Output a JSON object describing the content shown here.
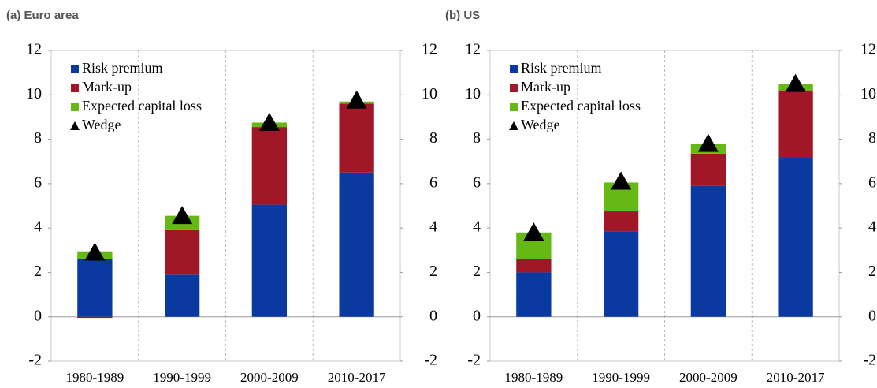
{
  "chart_data": [
    {
      "type": "bar",
      "stacked": true,
      "title": "(a) Euro area",
      "categories": [
        "1980-1989",
        "1990-1999",
        "2000-2009",
        "2010-2017"
      ],
      "series": [
        {
          "name": "Risk premium",
          "color": "#0a3aa0",
          "values": [
            2.6,
            1.9,
            5.05,
            6.5
          ]
        },
        {
          "name": "Mark-up",
          "color": "#a01828",
          "values": [
            -0.05,
            2.0,
            3.5,
            3.1
          ]
        },
        {
          "name": "Expected capital loss",
          "color": "#66b814",
          "values": [
            0.35,
            0.65,
            0.2,
            0.1
          ]
        },
        {
          "name": "Wedge",
          "color": "#000000",
          "marker": "triangle",
          "values": [
            2.85,
            4.5,
            8.7,
            9.7
          ]
        }
      ],
      "ylim": [
        -2,
        12
      ],
      "yticks": [
        -2,
        0,
        2,
        4,
        6,
        8,
        10,
        12
      ],
      "y2lim": [
        -2,
        12
      ],
      "y2ticks": [
        -2,
        0,
        2,
        4,
        6,
        8,
        10,
        12
      ],
      "legend": "upper left"
    },
    {
      "type": "bar",
      "stacked": true,
      "title": "(b) US",
      "categories": [
        "1980-1989",
        "1990-1999",
        "2000-2009",
        "2010-2017"
      ],
      "series": [
        {
          "name": "Risk premium",
          "color": "#0a3aa0",
          "values": [
            2.0,
            3.85,
            5.9,
            7.2
          ]
        },
        {
          "name": "Mark-up",
          "color": "#a01828",
          "values": [
            0.6,
            0.9,
            1.45,
            3.0
          ]
        },
        {
          "name": "Expected capital loss",
          "color": "#66b814",
          "values": [
            1.2,
            1.3,
            0.45,
            0.3
          ]
        },
        {
          "name": "Wedge",
          "color": "#000000",
          "marker": "triangle",
          "values": [
            3.75,
            6.05,
            7.75,
            10.45
          ]
        }
      ],
      "ylim": [
        -2,
        12
      ],
      "yticks": [
        -2,
        0,
        2,
        4,
        6,
        8,
        10,
        12
      ],
      "y2lim": [
        -2,
        12
      ],
      "y2ticks": [
        -2,
        0,
        2,
        4,
        6,
        8,
        10,
        12
      ],
      "legend": "upper left"
    }
  ]
}
